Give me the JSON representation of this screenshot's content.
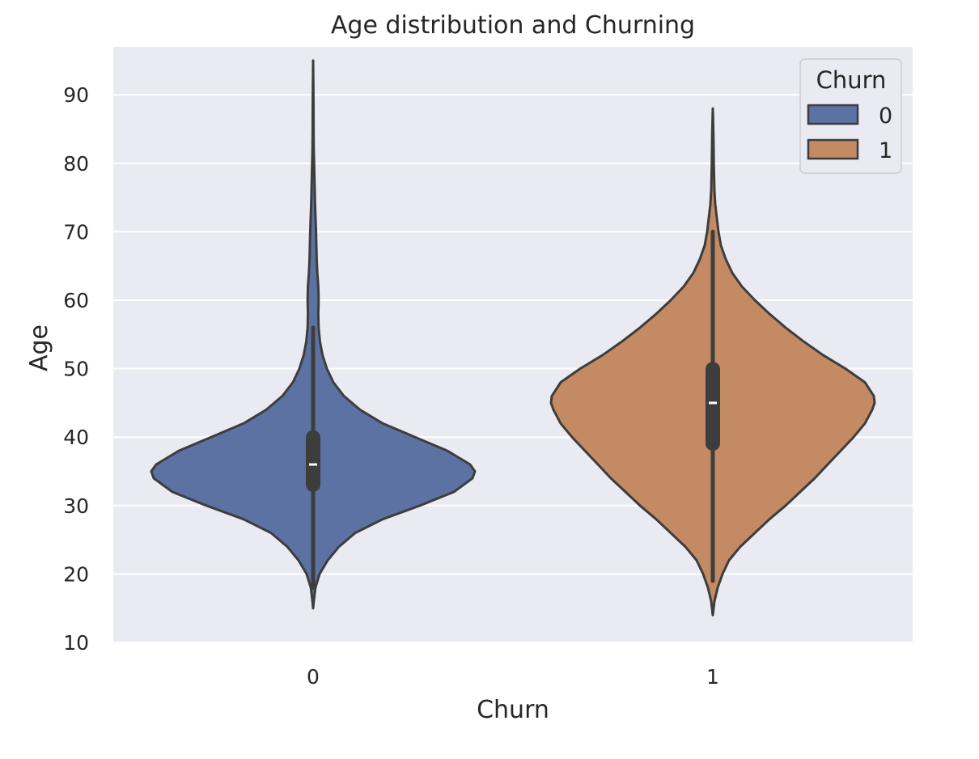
{
  "chart_data": {
    "type": "violin",
    "title": "Age distribution and Churning",
    "xlabel": "Churn",
    "ylabel": "Age",
    "categories": [
      "0",
      "1"
    ],
    "ylim": [
      10,
      97
    ],
    "yticks": [
      10,
      20,
      30,
      40,
      50,
      60,
      70,
      80,
      90
    ],
    "grid": true,
    "legend": {
      "title": "Churn",
      "placement": "top-right",
      "entries": [
        {
          "label": "0",
          "color": "#5c72a3"
        },
        {
          "label": "1",
          "color": "#c48a64"
        }
      ]
    },
    "series": [
      {
        "category": "0",
        "color": "#5c72a3",
        "min": 15,
        "max": 95,
        "whisker_low": 18,
        "whisker_high": 56,
        "q1": 32,
        "median": 36,
        "q3": 41,
        "density": [
          [
            15,
            0.0
          ],
          [
            16,
            0.004
          ],
          [
            18,
            0.014
          ],
          [
            20,
            0.04
          ],
          [
            22,
            0.09
          ],
          [
            24,
            0.16
          ],
          [
            26,
            0.26
          ],
          [
            28,
            0.43
          ],
          [
            30,
            0.66
          ],
          [
            32,
            0.87
          ],
          [
            34,
            0.985
          ],
          [
            35,
            1.0
          ],
          [
            36,
            0.97
          ],
          [
            38,
            0.83
          ],
          [
            40,
            0.63
          ],
          [
            42,
            0.43
          ],
          [
            44,
            0.29
          ],
          [
            46,
            0.19
          ],
          [
            48,
            0.125
          ],
          [
            50,
            0.085
          ],
          [
            52,
            0.058
          ],
          [
            54,
            0.042
          ],
          [
            56,
            0.034
          ],
          [
            58,
            0.032
          ],
          [
            60,
            0.034
          ],
          [
            62,
            0.032
          ],
          [
            64,
            0.026
          ],
          [
            66,
            0.022
          ],
          [
            68,
            0.02
          ],
          [
            70,
            0.018
          ],
          [
            72,
            0.015
          ],
          [
            74,
            0.012
          ],
          [
            76,
            0.01
          ],
          [
            78,
            0.008
          ],
          [
            80,
            0.006
          ],
          [
            82,
            0.004
          ],
          [
            85,
            0.003
          ],
          [
            90,
            0.002
          ],
          [
            95,
            0.0
          ]
        ]
      },
      {
        "category": "1",
        "color": "#c48a64",
        "min": 14,
        "max": 88,
        "whisker_low": 19,
        "whisker_high": 70,
        "q1": 38,
        "median": 45,
        "q3": 51,
        "density": [
          [
            14,
            0.0
          ],
          [
            16,
            0.01
          ],
          [
            18,
            0.03
          ],
          [
            20,
            0.06
          ],
          [
            22,
            0.1
          ],
          [
            24,
            0.17
          ],
          [
            26,
            0.26
          ],
          [
            28,
            0.35
          ],
          [
            30,
            0.45
          ],
          [
            32,
            0.54
          ],
          [
            34,
            0.63
          ],
          [
            36,
            0.71
          ],
          [
            38,
            0.79
          ],
          [
            40,
            0.87
          ],
          [
            42,
            0.94
          ],
          [
            44,
            0.985
          ],
          [
            45,
            1.0
          ],
          [
            46,
            0.995
          ],
          [
            48,
            0.94
          ],
          [
            50,
            0.82
          ],
          [
            52,
            0.68
          ],
          [
            54,
            0.56
          ],
          [
            56,
            0.45
          ],
          [
            58,
            0.35
          ],
          [
            60,
            0.26
          ],
          [
            62,
            0.18
          ],
          [
            64,
            0.12
          ],
          [
            66,
            0.08
          ],
          [
            68,
            0.05
          ],
          [
            70,
            0.035
          ],
          [
            72,
            0.025
          ],
          [
            74,
            0.015
          ],
          [
            76,
            0.01
          ],
          [
            78,
            0.008
          ],
          [
            80,
            0.006
          ],
          [
            84,
            0.004
          ],
          [
            88,
            0.0
          ]
        ]
      }
    ],
    "colors": {
      "plot_background": "#eaeaf2",
      "grid": "#ffffff",
      "outline": "#3d3d3d",
      "box": "#3d3d3d",
      "median": "#ffffff"
    }
  }
}
